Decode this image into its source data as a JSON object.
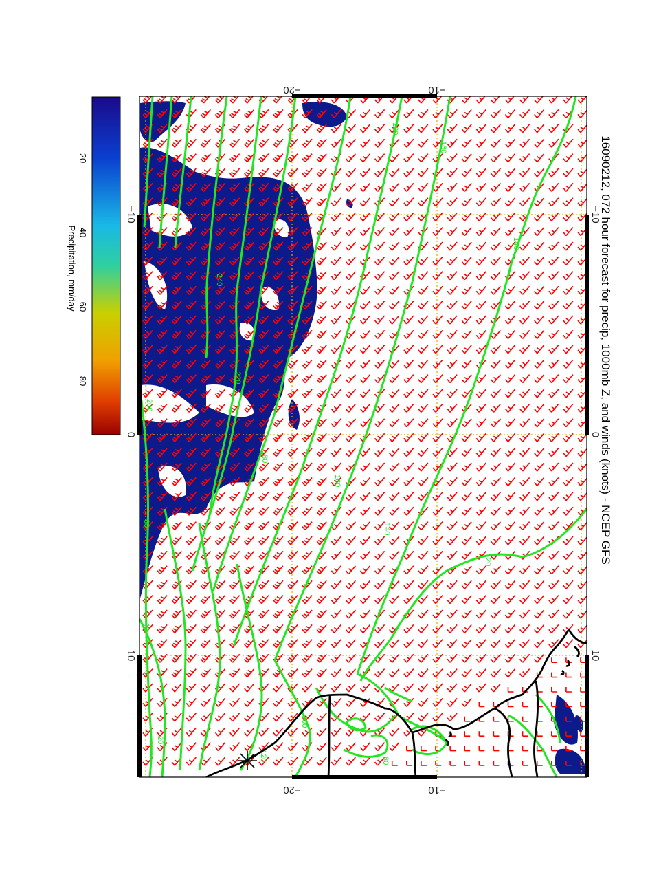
{
  "title": "16090212, 072 hour forecast for precip, 1000mb Z, and winds (knots) - NCEP GFS",
  "colorbar": {
    "label": "Precipitation, mm/day",
    "ticks": [
      "20",
      "40",
      "60",
      "80"
    ],
    "colors": [
      "#1a0a8a",
      "#0a3fd0",
      "#19b8e6",
      "#2fd0a0",
      "#c9d000",
      "#f0a000",
      "#e04000",
      "#9a0000"
    ]
  },
  "axes": {
    "top": [
      "−20",
      "−10"
    ],
    "bottom": [
      "−20",
      "−10"
    ],
    "left": [
      "−10",
      "0",
      "10"
    ],
    "right": [
      "−10",
      "0",
      "10"
    ]
  },
  "contours": {
    "color": "#22e622",
    "labels": [
      "180",
      "160",
      "140",
      "120",
      "240",
      "220",
      "200",
      "180",
      "160",
      "140",
      "120",
      "100",
      "80",
      "60",
      "40",
      "20"
    ]
  },
  "colors": {
    "wind_barbs": "#ff0000",
    "precip": "#0a1a8a",
    "coast": "#000000",
    "grid": "#e0b000"
  }
}
